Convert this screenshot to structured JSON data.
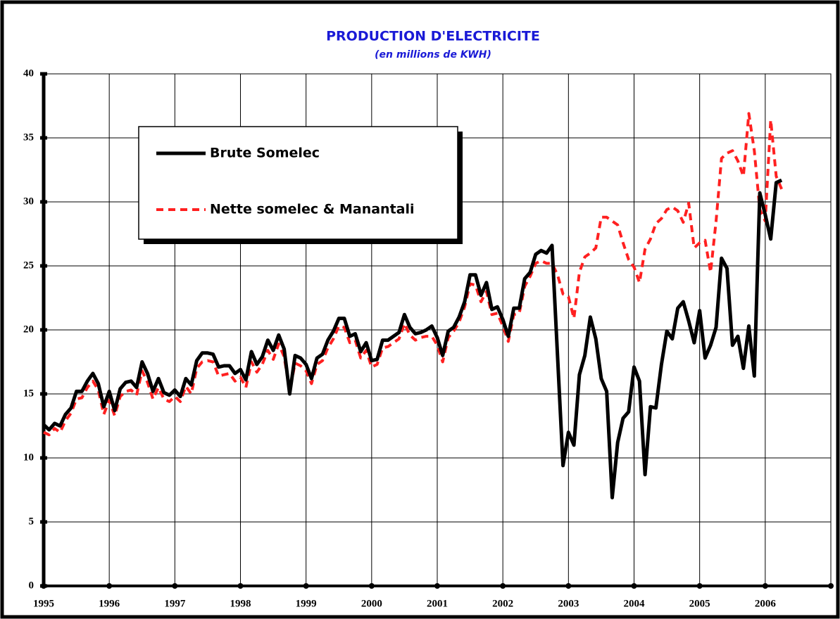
{
  "chart_data": {
    "type": "line",
    "title": "PRODUCTION D'ELECTRICITE",
    "subtitle": "(en millions de KWH)",
    "x": [
      1995,
      1995.083,
      1995.167,
      1995.25,
      1995.333,
      1995.417,
      1995.5,
      1995.583,
      1995.667,
      1995.75,
      1995.833,
      1995.917,
      1996,
      1996.083,
      1996.167,
      1996.25,
      1996.333,
      1996.417,
      1996.5,
      1996.583,
      1996.667,
      1996.75,
      1996.833,
      1996.917,
      1997,
      1997.083,
      1997.167,
      1997.25,
      1997.333,
      1997.417,
      1997.5,
      1997.583,
      1997.667,
      1997.75,
      1997.833,
      1997.917,
      1998,
      1998.083,
      1998.167,
      1998.25,
      1998.333,
      1998.417,
      1998.5,
      1998.583,
      1998.667,
      1998.75,
      1998.833,
      1998.917,
      1999,
      1999.083,
      1999.167,
      1999.25,
      1999.333,
      1999.417,
      1999.5,
      1999.583,
      1999.667,
      1999.75,
      1999.833,
      1999.917,
      2000,
      2000.083,
      2000.167,
      2000.25,
      2000.333,
      2000.417,
      2000.5,
      2000.583,
      2000.667,
      2000.75,
      2000.833,
      2000.917,
      2001,
      2001.083,
      2001.167,
      2001.25,
      2001.333,
      2001.417,
      2001.5,
      2001.583,
      2001.667,
      2001.75,
      2001.833,
      2001.917,
      2002,
      2002.083,
      2002.167,
      2002.25,
      2002.333,
      2002.417,
      2002.5,
      2002.583,
      2002.667,
      2002.75,
      2002.833,
      2002.917,
      2003,
      2003.083,
      2003.167,
      2003.25,
      2003.333,
      2003.417,
      2003.5,
      2003.583,
      2003.667,
      2003.75,
      2003.833,
      2003.917,
      2004,
      2004.083,
      2004.167,
      2004.25,
      2004.333,
      2004.417,
      2004.5,
      2004.583,
      2004.667,
      2004.75,
      2004.833,
      2004.917,
      2005,
      2005.083,
      2005.167,
      2005.25,
      2005.333,
      2005.417,
      2005.5,
      2005.583,
      2005.667,
      2005.75,
      2005.833,
      2005.917,
      2006,
      2006.083,
      2006.167,
      2006.25
    ],
    "series": [
      {
        "name": "Brute Somelec",
        "color": "#000000",
        "dash": false,
        "values": [
          12.6,
          12.2,
          12.7,
          12.5,
          13.4,
          13.9,
          15.2,
          15.2,
          16.0,
          16.6,
          15.8,
          14.0,
          15.2,
          13.7,
          15.4,
          15.9,
          16.0,
          15.5,
          17.5,
          16.6,
          15.2,
          16.2,
          15.1,
          14.9,
          15.3,
          14.8,
          16.2,
          15.7,
          17.6,
          18.2,
          18.2,
          18.1,
          17.1,
          17.2,
          17.2,
          16.6,
          16.9,
          16.1,
          18.3,
          17.3,
          17.9,
          19.2,
          18.4,
          19.6,
          18.5,
          15.0,
          18.0,
          17.8,
          17.3,
          16.2,
          17.8,
          18.1,
          19.2,
          19.9,
          20.9,
          20.9,
          19.5,
          19.7,
          18.3,
          19.0,
          17.6,
          17.7,
          19.2,
          19.2,
          19.5,
          19.8,
          21.2,
          20.2,
          19.7,
          19.8,
          20.0,
          20.3,
          19.4,
          18.0,
          19.9,
          20.2,
          21.0,
          22.2,
          24.3,
          24.3,
          22.7,
          23.7,
          21.6,
          21.8,
          20.8,
          19.5,
          21.7,
          21.7,
          24.0,
          24.5,
          25.9,
          26.2,
          26.0,
          26.6,
          18.0,
          9.4,
          12.0,
          11.0,
          16.5,
          18.0,
          21.0,
          19.3,
          16.2,
          15.2,
          6.9,
          11.2,
          13.1,
          13.6,
          17.1,
          16.0,
          8.7,
          14.0,
          13.9,
          17.3,
          19.9,
          19.3,
          21.7,
          22.2,
          20.7,
          19.0,
          21.5,
          17.8,
          18.8,
          20.2,
          25.6,
          24.8,
          18.8,
          19.5,
          17.0,
          20.3,
          16.4,
          30.7,
          29.0,
          27.1,
          31.5,
          31.7
        ]
      },
      {
        "name": "Nette somelec & Manantali",
        "color": "#ff2020",
        "dash": true,
        "values": [
          12.0,
          11.8,
          12.3,
          12.0,
          12.9,
          13.5,
          14.6,
          14.7,
          15.5,
          16.0,
          15.3,
          13.4,
          14.5,
          13.3,
          14.8,
          15.2,
          15.3,
          14.9,
          16.8,
          15.9,
          14.6,
          15.5,
          14.6,
          14.4,
          14.8,
          14.4,
          15.6,
          15.0,
          17.0,
          17.5,
          17.6,
          17.5,
          16.4,
          16.5,
          16.6,
          16.0,
          16.3,
          15.5,
          17.5,
          16.7,
          17.3,
          18.4,
          17.7,
          18.9,
          17.9,
          15.2,
          17.4,
          17.2,
          16.8,
          15.8,
          17.3,
          17.6,
          18.6,
          19.3,
          20.3,
          20.2,
          19.0,
          19.2,
          17.8,
          18.4,
          17.1,
          17.3,
          18.6,
          18.7,
          19.0,
          19.3,
          20.5,
          19.6,
          19.2,
          19.4,
          19.5,
          19.5,
          18.8,
          17.5,
          19.4,
          19.9,
          20.6,
          21.8,
          23.6,
          23.5,
          22.2,
          23.0,
          21.2,
          21.3,
          20.3,
          19.1,
          21.2,
          21.3,
          23.4,
          24.2,
          25.2,
          25.4,
          25.2,
          25.2,
          24.3,
          22.8,
          22.6,
          20.9,
          24.5,
          25.7,
          26.0,
          26.4,
          28.8,
          28.8,
          28.5,
          28.2,
          26.8,
          25.5,
          24.9,
          23.7,
          26.3,
          27.1,
          28.3,
          28.7,
          29.4,
          29.6,
          29.3,
          28.4,
          29.9,
          26.4,
          26.8,
          27.0,
          24.5,
          28.5,
          33.4,
          33.8,
          34.0,
          33.2,
          32.0,
          36.9,
          34.0,
          29.4,
          28.5,
          36.4,
          32.0,
          31.0
        ]
      }
    ],
    "xlim": [
      1995,
      2007
    ],
    "xticks": [
      1995,
      1996,
      1997,
      1998,
      1999,
      2000,
      2001,
      2002,
      2003,
      2004,
      2005,
      2006
    ],
    "ylim": [
      0,
      40
    ],
    "yticks": [
      0,
      5,
      10,
      15,
      20,
      25,
      30,
      35,
      40
    ],
    "grid": true,
    "legend": "upper left"
  }
}
